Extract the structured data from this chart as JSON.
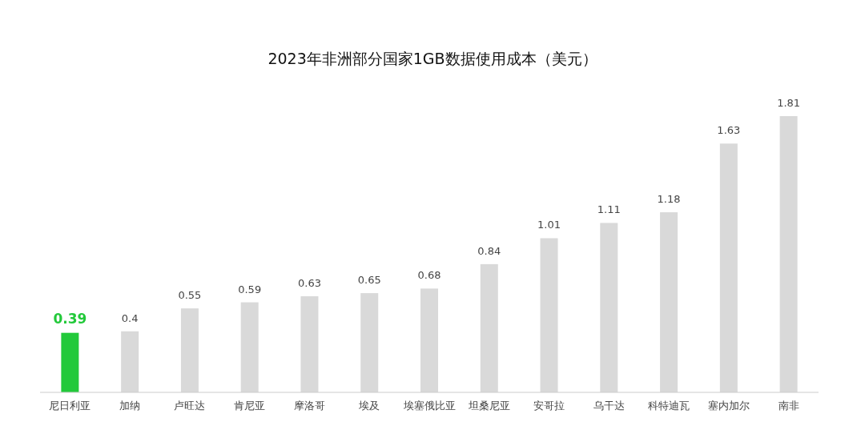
{
  "chart_data": {
    "type": "bar",
    "title": "2023年非洲部分国家1GB数据使用成本（美元）",
    "categories": [
      "尼日利亚",
      "加纳",
      "卢旺达",
      "肯尼亚",
      "摩洛哥",
      "埃及",
      "埃塞俄比亚",
      "坦桑尼亚",
      "安哥拉",
      "乌干达",
      "科特迪瓦",
      "塞内加尔",
      "南非"
    ],
    "values": [
      0.39,
      0.4,
      0.55,
      0.59,
      0.63,
      0.65,
      0.68,
      0.84,
      1.01,
      1.11,
      1.18,
      1.63,
      1.81
    ],
    "colors": [
      "#22c93a",
      "#d9d9d9",
      "#d9d9d9",
      "#d9d9d9",
      "#d9d9d9",
      "#d9d9d9",
      "#d9d9d9",
      "#d9d9d9",
      "#d9d9d9",
      "#d9d9d9",
      "#d9d9d9",
      "#d9d9d9",
      "#d9d9d9"
    ],
    "data_labels": true
  }
}
